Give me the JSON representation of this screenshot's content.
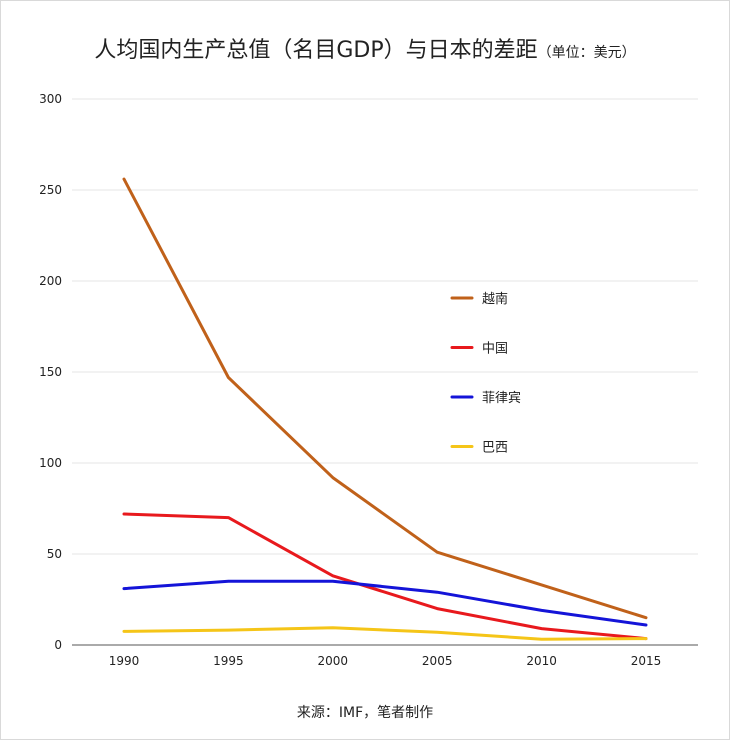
{
  "chart_data": {
    "type": "line",
    "title": "人均国内生产总值（名目GDP）与日本的差距",
    "subtitle": "（单位：美元）",
    "source": "来源：IMF，笔者制作",
    "x": [
      "1990",
      "1995",
      "2000",
      "2005",
      "2010",
      "2015"
    ],
    "ylim": [
      0,
      300
    ],
    "yticks": [
      0,
      50,
      100,
      150,
      200,
      250,
      300
    ],
    "grid": true,
    "legend_position": "right",
    "series": [
      {
        "name": "越南",
        "color": "#c0611a",
        "values": [
          256,
          147,
          92,
          51,
          33,
          15
        ]
      },
      {
        "name": "中国",
        "color": "#e8191d",
        "values": [
          72,
          70,
          38,
          20,
          9,
          3.5
        ]
      },
      {
        "name": "菲律宾",
        "color": "#1414d8",
        "values": [
          31,
          35,
          35,
          29,
          19,
          11
        ]
      },
      {
        "name": "巴西",
        "color": "#f5c518",
        "values": [
          7.5,
          8.2,
          9.5,
          7,
          3.2,
          3.5
        ]
      }
    ]
  }
}
